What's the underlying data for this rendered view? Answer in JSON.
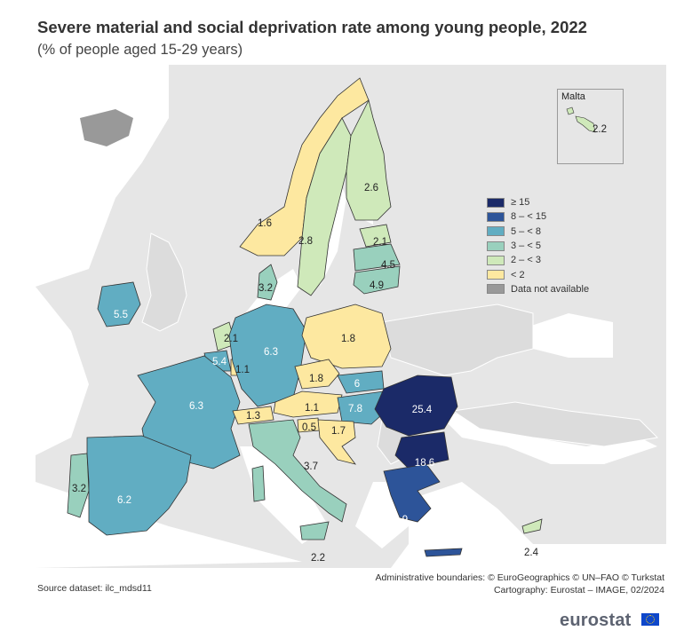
{
  "title": "Severe material and social deprivation rate among young people, 2022",
  "subtitle": "(% of people aged 15-29 years)",
  "legend": [
    {
      "label": "≥ 15",
      "color": "#1b2a68"
    },
    {
      "label": "8 – < 15",
      "color": "#2d5499"
    },
    {
      "label": "5 – < 8",
      "color": "#61adc2"
    },
    {
      "label": "3 – < 5",
      "color": "#99d0bd"
    },
    {
      "label": "2 – < 3",
      "color": "#cfe9ba"
    },
    {
      "label": "< 2",
      "color": "#fde8a0"
    },
    {
      "label": "Data not available",
      "color": "#999999"
    }
  ],
  "inset": {
    "name": "Malta",
    "value": "2.2"
  },
  "countries": {
    "norway": "1.6",
    "sweden": "2.8",
    "finland": "2.6",
    "estonia": "2.1",
    "latvia": "4.5",
    "lithuania": "4.9",
    "denmark": "3.2",
    "ireland": "5.5",
    "netherlands": "2.1",
    "belgium": "5.4",
    "luxembourg": "1.1",
    "germany": "6.3",
    "poland": "1.8",
    "czechia": "1.8",
    "slovakia": "6",
    "france": "6.3",
    "switzerland": "1.3",
    "austria": "1.1",
    "hungary": "7.8",
    "slovenia": "0.5",
    "croatia": "1.7",
    "romania": "25.4",
    "bulgaria": "18.6",
    "italy": "3.7",
    "portugal": "3.2",
    "spain": "6.2",
    "greece": "14.9",
    "sicily_malta_label": "2.2",
    "cyprus": "2.4"
  },
  "source": "Source dataset: ilc_mdsd11",
  "credit_line1": "Administrative boundaries: © EuroGeographics © UN–FAO © Turkstat",
  "credit_line2": "Cartography: Eurostat – IMAGE, 02/2024",
  "brand": "eurostat"
}
